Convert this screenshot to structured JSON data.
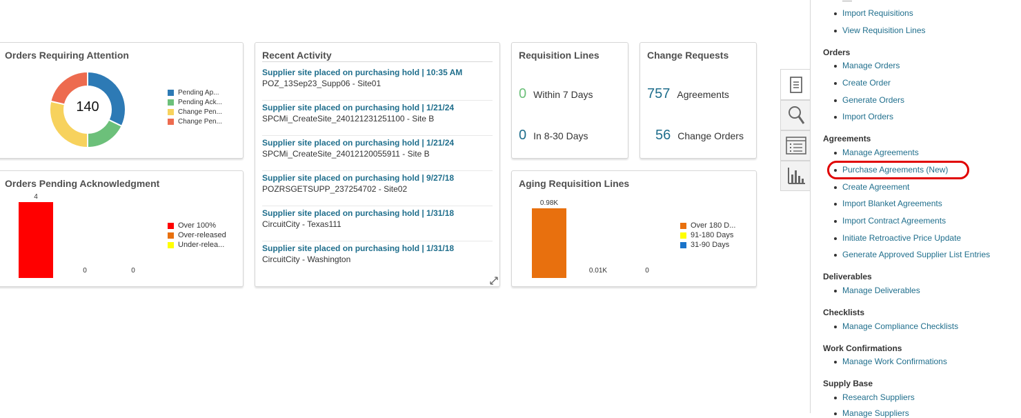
{
  "cards": {
    "orders_attention": {
      "title": "Orders Requiring Attention",
      "center_value": "140",
      "legend": [
        {
          "label": "Pending Ap...",
          "color": "#2d7ab5"
        },
        {
          "label": "Pending Ack...",
          "color": "#6cc07a"
        },
        {
          "label": "Change Pen...",
          "color": "#f7d25d"
        },
        {
          "label": "Change Pen...",
          "color": "#ed6b4f"
        }
      ]
    },
    "orders_ack": {
      "title": "Orders Pending Acknowledgment",
      "bar_labels": [
        "4",
        "0",
        "0"
      ],
      "legend": [
        {
          "label": "Over 100%",
          "color": "#ff0000"
        },
        {
          "label": "Over-released",
          "color": "#e8700e"
        },
        {
          "label": "Under-relea...",
          "color": "#ffff00"
        }
      ]
    },
    "recent_activity": {
      "title": "Recent Activity",
      "items": [
        {
          "link": "Supplier site placed on purchasing hold | 10:35 AM",
          "sub": "POZ_13Sep23_Supp06 - Site01"
        },
        {
          "link": "Supplier site placed on purchasing hold | 1/21/24",
          "sub": "SPCMi_CreateSite_240121231251100 - Site B"
        },
        {
          "link": "Supplier site placed on purchasing hold | 1/21/24",
          "sub": "SPCMi_CreateSite_24012120055911 - Site B"
        },
        {
          "link": "Supplier site placed on purchasing hold | 9/27/18",
          "sub": "POZRSGETSUPP_237254702 - Site02"
        },
        {
          "link": "Supplier site placed on purchasing hold | 1/31/18",
          "sub": "CircuitCity - Texas111"
        },
        {
          "link": "Supplier site placed on purchasing hold | 1/31/18",
          "sub": "CircuitCity - Washington"
        }
      ]
    },
    "req_lines": {
      "title": "Requisition Lines",
      "metrics": [
        {
          "num": "0",
          "label": "Within 7 Days",
          "color": "#6cc07a"
        },
        {
          "num": "0",
          "label": "In 8-30 Days",
          "color": "#1f6e8c"
        }
      ]
    },
    "change_requests": {
      "title": "Change Requests",
      "metrics": [
        {
          "num": "757",
          "label": "Agreements"
        },
        {
          "num": "56",
          "label": "Change Orders"
        }
      ]
    },
    "aging": {
      "title": "Aging Requisition Lines",
      "bar_labels": [
        "0.98K",
        "0.01K",
        "0"
      ],
      "legend": [
        {
          "label": "Over 180 D...",
          "color": "#e8700e"
        },
        {
          "label": "91-180 Days",
          "color": "#ffff00"
        },
        {
          "label": "31-90 Days",
          "color": "#1a73c9"
        }
      ]
    }
  },
  "panel": {
    "top_links": [
      "Import Requisitions",
      "View Requisition Lines"
    ],
    "sections": [
      {
        "title": "Orders",
        "links": [
          "Manage Orders",
          "Create Order",
          "Generate Orders",
          "Import Orders"
        ]
      },
      {
        "title": "Agreements",
        "links": [
          "Manage Agreements",
          "Purchase Agreements (New)",
          "Create Agreement",
          "Import Blanket Agreements",
          "Import Contract Agreements",
          "Initiate Retroactive Price Update",
          "Generate Approved Supplier List Entries"
        ]
      },
      {
        "title": "Deliverables",
        "links": [
          "Manage Deliverables"
        ]
      },
      {
        "title": "Checklists",
        "links": [
          "Manage Compliance Checklists"
        ]
      },
      {
        "title": "Work Confirmations",
        "links": [
          "Manage Work Confirmations"
        ]
      },
      {
        "title": "Supply Base",
        "links": [
          "Research Suppliers",
          "Manage Suppliers"
        ]
      }
    ],
    "highlight_color": "#e00000"
  },
  "side_tabs": [
    "document-icon",
    "search-icon",
    "list-icon",
    "bar-chart-icon"
  ],
  "chart_data": [
    {
      "type": "pie",
      "title": "Orders Requiring Attention",
      "categories": [
        "Pending Ap...",
        "Pending Ack...",
        "Change Pen...",
        "Change Pen..."
      ],
      "values": [
        45,
        25,
        40,
        30
      ],
      "total": 140
    },
    {
      "type": "bar",
      "title": "Orders Pending Acknowledgment",
      "categories": [
        "Over 100%",
        "Over-released",
        "Under-relea..."
      ],
      "values": [
        4,
        0,
        0
      ]
    },
    {
      "type": "bar",
      "title": "Aging Requisition Lines",
      "categories": [
        "Over 180 D...",
        "91-180 Days",
        "31-90 Days"
      ],
      "values": [
        980,
        10,
        0
      ]
    }
  ]
}
